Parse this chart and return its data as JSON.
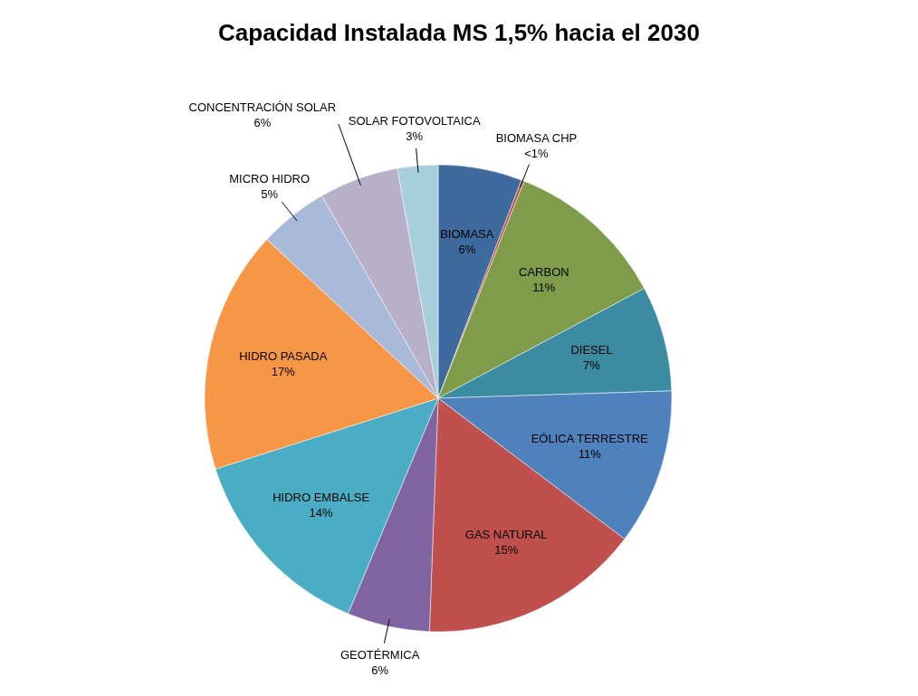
{
  "chart_data": {
    "type": "pie",
    "title": "Capacidad Instalada MS 1,5% hacia el 2030",
    "categories": [
      "BIOMASA",
      "BIOMASA CHP",
      "CARBON",
      "DIESEL",
      "EÓLICA TERRESTRE",
      "GAS NATURAL",
      "GEOTÉRMICA",
      "HIDRO EMBALSE",
      "HIDRO PASADA",
      "MICRO HIDRO",
      "CONCENTRACIÓN SOLAR",
      "SOLAR FOTOVOLTAICA"
    ],
    "values": [
      5.8,
      0.2,
      11.2,
      7.3,
      10.8,
      15.3,
      5.7,
      13.8,
      16.8,
      4.8,
      5.5,
      2.8
    ],
    "value_labels": [
      "6%",
      "<1%",
      "11%",
      "7%",
      "11%",
      "15%",
      "6%",
      "14%",
      "17%",
      "5%",
      "6%",
      "3%"
    ],
    "colors": [
      "#3f6a9e",
      "#c0504d",
      "#7f9c4a",
      "#3b8ca3",
      "#4f81bd",
      "#c0504d",
      "#8064a2",
      "#4bacc6",
      "#f79646",
      "#a9b9d9",
      "#b8afc9",
      "#a9cedc"
    ]
  }
}
